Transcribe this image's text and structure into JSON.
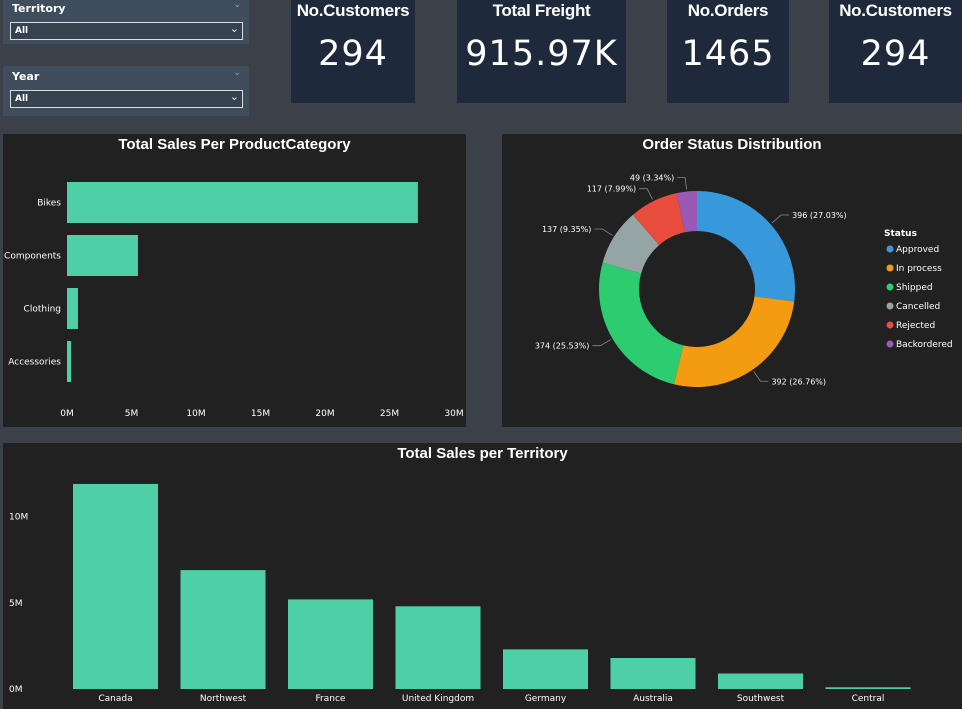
{
  "slicers": {
    "territory": {
      "label": "Territory",
      "value": "All"
    },
    "year": {
      "label": "Year",
      "value": "All"
    }
  },
  "cards": [
    {
      "title": "No.Customers",
      "value": "294"
    },
    {
      "title": "Total Freight",
      "value": "915.97K"
    },
    {
      "title": "No.Orders",
      "value": "1465"
    },
    {
      "title": "No.Customers",
      "value": "294"
    }
  ],
  "colors": {
    "bar": "#4ecfa6",
    "panel": "#212121",
    "background": "#3c4149"
  },
  "chart_data": [
    {
      "type": "bar",
      "orientation": "horizontal",
      "title": "Total Sales Per ProductCategory",
      "categories": [
        "Bikes",
        "Components",
        "Clothing",
        "Accessories"
      ],
      "values": [
        27.2,
        5.5,
        0.85,
        0.32
      ],
      "value_unit": "M",
      "xlim": [
        0,
        30
      ],
      "ticks": [
        "0M",
        "5M",
        "10M",
        "15M",
        "20M",
        "25M",
        "30M"
      ],
      "grid": false
    },
    {
      "type": "pie",
      "variant": "donut",
      "title": "Order Status Distribution",
      "legend_title": "Status",
      "legend_position": "right",
      "slices": [
        {
          "name": "Approved",
          "value": 396,
          "label": "396 (27.03%)",
          "color": "#3799dc"
        },
        {
          "name": "In process",
          "value": 392,
          "label": "392 (26.76%)",
          "color": "#f39c12"
        },
        {
          "name": "Shipped",
          "value": 374,
          "label": "374 (25.53%)",
          "color": "#2ecc71"
        },
        {
          "name": "Cancelled",
          "value": 137,
          "label": "137 (9.35%)",
          "color": "#95a5a6"
        },
        {
          "name": "Rejected",
          "value": 117,
          "label": "117 (7.99%)",
          "color": "#e74c3c"
        },
        {
          "name": "Backordered",
          "value": 49,
          "label": "49 (3.34%)",
          "color": "#9b59b6"
        }
      ]
    },
    {
      "type": "bar",
      "title": "Total Sales per Territory",
      "categories": [
        "Canada",
        "Northwest",
        "France",
        "United Kingdom",
        "Germany",
        "Australia",
        "Southwest",
        "Central"
      ],
      "values": [
        11.9,
        6.9,
        5.2,
        4.8,
        2.3,
        1.8,
        0.9,
        0.1
      ],
      "value_unit": "M",
      "ylim": [
        0,
        13
      ],
      "ticks": [
        "0M",
        "5M",
        "10M"
      ],
      "grid": false
    }
  ]
}
